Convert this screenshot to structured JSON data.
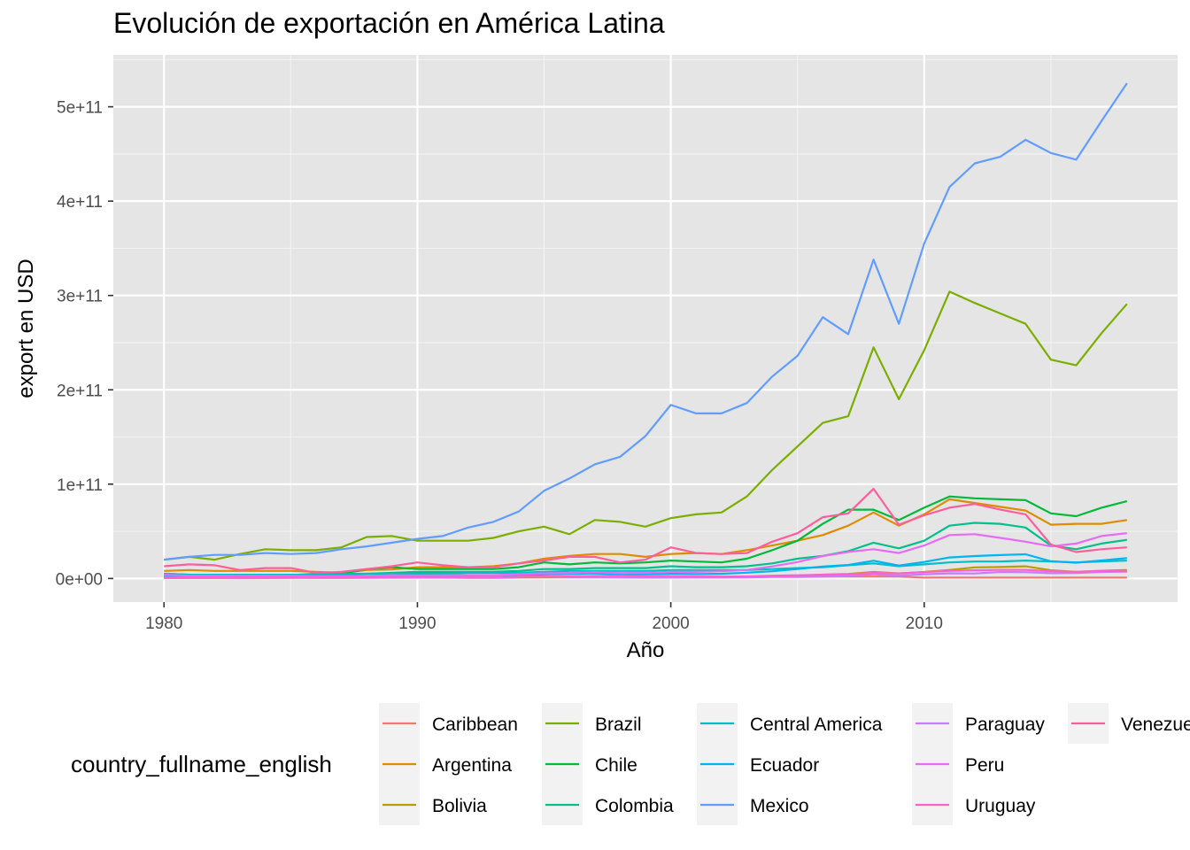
{
  "chart_data": {
    "type": "line",
    "title": "Evolución de exportación en América Latina",
    "xlabel": "Año",
    "ylabel": "export en USD",
    "xlim": [
      1978,
      2020
    ],
    "ylim": [
      -25000000000.0,
      555000000000.0
    ],
    "xticks": [
      1980,
      1990,
      2000,
      2010
    ],
    "yticks": [
      0,
      100000000000.0,
      200000000000.0,
      300000000000.0,
      400000000000.0,
      500000000000.0
    ],
    "ytick_labels": [
      "0e+00",
      "1e+11",
      "2e+11",
      "3e+11",
      "4e+11",
      "5e+11"
    ],
    "grid": true,
    "legend_title": "country_fullname_english",
    "legend_position": "bottom",
    "x": [
      1980,
      1981,
      1982,
      1983,
      1984,
      1985,
      1986,
      1987,
      1988,
      1989,
      1990,
      1991,
      1992,
      1993,
      1994,
      1995,
      1996,
      1997,
      1998,
      1999,
      2000,
      2001,
      2002,
      2003,
      2004,
      2005,
      2006,
      2007,
      2008,
      2009,
      2010,
      2011,
      2012,
      2013,
      2014,
      2015,
      2016,
      2017,
      2018
    ],
    "series": [
      {
        "name": "Caribbean",
        "color": "#F8766D",
        "values": [
          2000000000.0,
          2000000000.0,
          2000000000.0,
          2000000000.0,
          2000000000.0,
          2000000000.0,
          2000000000.0,
          2000000000.0,
          2000000000.0,
          2000000000.0,
          2000000000.0,
          2000000000.0,
          2000000000.0,
          2000000000.0,
          2000000000.0,
          2000000000.0,
          2000000000.0,
          2000000000.0,
          2000000000.0,
          2000000000.0,
          2000000000.0,
          2000000000.0,
          2000000000.0,
          2000000000.0,
          2000000000.0,
          2000000000.0,
          2000000000.0,
          2000000000.0,
          2000000000.0,
          2000000000.0,
          1000000000.0,
          1000000000.0,
          1000000000.0,
          1000000000.0,
          1000000000.0,
          1000000000.0,
          1000000000.0,
          1000000000.0,
          1000000000.0
        ]
      },
      {
        "name": "Argentina",
        "color": "#DE8C00",
        "values": [
          8000000000.0,
          9000000000.0,
          8000000000.0,
          8000000000.0,
          8000000000.0,
          8000000000.0,
          7000000000.0,
          6000000000.0,
          9000000000.0,
          9500000000.0,
          12000000000.0,
          12000000000.0,
          12000000000.0,
          13000000000.0,
          16000000000.0,
          21000000000.0,
          24000000000.0,
          26000000000.0,
          26000000000.0,
          23000000000.0,
          26000000000.0,
          27000000000.0,
          26000000000.0,
          30000000000.0,
          35000000000.0,
          40000000000.0,
          46000000000.0,
          56000000000.0,
          70000000000.0,
          56000000000.0,
          68000000000.0,
          84000000000.0,
          80000000000.0,
          76000000000.0,
          72000000000.0,
          57000000000.0,
          58000000000.0,
          58000000000.0,
          62000000000.0
        ]
      },
      {
        "name": "Bolivia",
        "color": "#B79F00",
        "values": [
          1000000000.0,
          1000000000.0,
          1000000000.0,
          1000000000.0,
          1000000000.0,
          1000000000.0,
          600000000.0,
          600000000.0,
          600000000.0,
          800000000.0,
          900000000.0,
          900000000.0,
          700000000.0,
          700000000.0,
          1000000000.0,
          1100000000.0,
          1100000000.0,
          1200000000.0,
          1100000000.0,
          1100000000.0,
          1200000000.0,
          1300000000.0,
          1300000000.0,
          1600000000.0,
          2200000000.0,
          2800000000.0,
          4100000000.0,
          4800000000.0,
          6900000000.0,
          5400000000.0,
          6900000000.0,
          9100000000.0,
          11800000000.0,
          12200000000.0,
          12900000000.0,
          8700000000.0,
          7100000000.0,
          8200000000.0,
          9000000000.0
        ]
      },
      {
        "name": "Brazil",
        "color": "#7CAE00",
        "values": [
          20000000000.0,
          23000000000.0,
          20000000000.0,
          26000000000.0,
          31000000000.0,
          30000000000.0,
          30000000000.0,
          33000000000.0,
          44000000000.0,
          45000000000.0,
          40000000000.0,
          40000000000.0,
          40000000000.0,
          43000000000.0,
          50000000000.0,
          55000000000.0,
          47000000000.0,
          62000000000.0,
          60000000000.0,
          55000000000.0,
          64000000000.0,
          68000000000.0,
          70000000000.0,
          87000000000.0,
          115000000000.0,
          140000000000.0,
          165000000000.0,
          172000000000.0,
          245000000000.0,
          190000000000.0,
          242000000000.0,
          304000000000.0,
          292000000000.0,
          281000000000.0,
          270000000000.0,
          232000000000.0,
          226000000000.0,
          260000000000.0,
          291000000000.0
        ]
      },
      {
        "name": "Chile",
        "color": "#00BA38",
        "values": [
          5000000000.0,
          4000000000.0,
          4000000000.0,
          4000000000.0,
          4000000000.0,
          4000000000.0,
          4000000000.0,
          5000000000.0,
          10000000000.0,
          12000000000.0,
          10000000000.0,
          10000000000.0,
          10000000000.0,
          10000000000.0,
          12000000000.0,
          17000000000.0,
          15000000000.0,
          17000000000.0,
          16000000000.0,
          17000000000.0,
          19000000000.0,
          18000000000.0,
          17000000000.0,
          21000000000.0,
          30000000000.0,
          40000000000.0,
          58000000000.0,
          73000000000.0,
          73000000000.0,
          62000000000.0,
          75000000000.0,
          87000000000.0,
          85000000000.0,
          84000000000.0,
          83000000000.0,
          69000000000.0,
          66000000000.0,
          75000000000.0,
          82000000000.0
        ]
      },
      {
        "name": "Colombia",
        "color": "#00C08B",
        "values": [
          4000000000.0,
          3000000000.0,
          3000000000.0,
          3000000000.0,
          4000000000.0,
          3500000000.0,
          5000000000.0,
          5000000000.0,
          5000000000.0,
          6000000000.0,
          7000000000.0,
          7000000000.0,
          7000000000.0,
          7000000000.0,
          8000000000.0,
          10000000000.0,
          10000000000.0,
          11000000000.0,
          11000000000.0,
          11000000000.0,
          13000000000.0,
          12000000000.0,
          12000000000.0,
          13000000000.0,
          16000000000.0,
          21000000000.0,
          24000000000.0,
          29000000000.0,
          38000000000.0,
          32000000000.0,
          40000000000.0,
          56000000000.0,
          59000000000.0,
          58000000000.0,
          54000000000.0,
          35000000000.0,
          31000000000.0,
          37000000000.0,
          41000000000.0
        ]
      },
      {
        "name": "Central America",
        "color": "#00BFC4",
        "values": [
          5000000000.0,
          4000000000.0,
          4000000000.0,
          4000000000.0,
          4000000000.0,
          4000000000.0,
          4000000000.0,
          4000000000.0,
          5000000000.0,
          5000000000.0,
          5000000000.0,
          5000000000.0,
          6000000000.0,
          6000000000.0,
          6000000000.0,
          7000000000.0,
          8000000000.0,
          8000000000.0,
          8000000000.0,
          8000000000.0,
          9000000000.0,
          9000000000.0,
          9000000000.0,
          9000000000.0,
          10000000000.0,
          11000000000.0,
          12000000000.0,
          14000000000.0,
          16000000000.0,
          13000000000.0,
          15000000000.0,
          17000000000.0,
          18000000000.0,
          18000000000.0,
          19000000000.0,
          18000000000.0,
          17000000000.0,
          18000000000.0,
          19000000000.0
        ]
      },
      {
        "name": "Ecuador",
        "color": "#00B4F0",
        "values": [
          2500000000.0,
          2500000000.0,
          2300000000.0,
          2200000000.0,
          2600000000.0,
          2900000000.0,
          2200000000.0,
          2000000000.0,
          2200000000.0,
          2400000000.0,
          2700000000.0,
          2900000000.0,
          3000000000.0,
          3000000000.0,
          3800000000.0,
          4300000000.0,
          4900000000.0,
          5300000000.0,
          4200000000.0,
          4500000000.0,
          4900000000.0,
          4700000000.0,
          5000000000.0,
          6200000000.0,
          7700000000.0,
          10100000000.0,
          12700000000.0,
          14300000000.0,
          18800000000.0,
          13800000000.0,
          17500000000.0,
          22300000000.0,
          23800000000.0,
          24800000000.0,
          25700000000.0,
          18300000000.0,
          16800000000.0,
          19100000000.0,
          21600000000.0
        ]
      },
      {
        "name": "Mexico",
        "color": "#619CFF",
        "values": [
          20000000000.0,
          23000000000.0,
          25000000000.0,
          25000000000.0,
          27000000000.0,
          26000000000.0,
          27000000000.0,
          31000000000.0,
          34000000000.0,
          38000000000.0,
          42000000000.0,
          45000000000.0,
          54000000000.0,
          60000000000.0,
          71000000000.0,
          93000000000.0,
          106000000000.0,
          121000000000.0,
          129000000000.0,
          151000000000.0,
          184000000000.0,
          175000000000.0,
          175000000000.0,
          186000000000.0,
          214000000000.0,
          236000000000.0,
          277000000000.0,
          259000000000.0,
          338000000000.0,
          270000000000.0,
          355000000000.0,
          415000000000.0,
          440000000000.0,
          447000000000.0,
          465000000000.0,
          451000000000.0,
          444000000000.0,
          485000000000.0,
          525000000000.0
        ]
      },
      {
        "name": "Paraguay",
        "color": "#C77CFF",
        "values": [
          400000000.0,
          400000000.0,
          400000000.0,
          300000000.0,
          400000000.0,
          500000000.0,
          600000000.0,
          600000000.0,
          900000000.0,
          1200000000.0,
          1400000000.0,
          1100000000.0,
          1000000000.0,
          1200000000.0,
          1600000000.0,
          1900000000.0,
          1600000000.0,
          1500000000.0,
          1200000000.0,
          900000000.0,
          900000000.0,
          1000000000.0,
          1000000000.0,
          1200000000.0,
          1600000000.0,
          1700000000.0,
          1900000000.0,
          2800000000.0,
          4400000000.0,
          3200000000.0,
          4500000000.0,
          5500000000.0,
          5300000000.0,
          6900000000.0,
          6700000000.0,
          5600000000.0,
          5900000000.0,
          6900000000.0,
          7300000000.0
        ]
      },
      {
        "name": "Peru",
        "color": "#E76BF3",
        "values": [
          4000000000.0,
          3000000000.0,
          3000000000.0,
          3000000000.0,
          3000000000.0,
          3000000000.0,
          2500000000.0,
          2500000000.0,
          2700000000.0,
          3500000000.0,
          3300000000.0,
          3400000000.0,
          3500000000.0,
          3500000000.0,
          4600000000.0,
          5500000000.0,
          5900000000.0,
          6800000000.0,
          5800000000.0,
          6100000000.0,
          7000000000.0,
          7000000000.0,
          7700000000.0,
          9100000000.0,
          12800000000.0,
          17400000000.0,
          23800000000.0,
          28100000000.0,
          31000000000.0,
          27000000000.0,
          35000000000.0,
          46000000000.0,
          47000000000.0,
          43000000000.0,
          39000000000.0,
          34000000000.0,
          37000000000.0,
          45000000000.0,
          48000000000.0
        ]
      },
      {
        "name": "Uruguay",
        "color": "#FF61CC",
        "values": [
          1000000000.0,
          1200000000.0,
          1000000000.0,
          1000000000.0,
          1000000000.0,
          1000000000.0,
          1100000000.0,
          1200000000.0,
          1400000000.0,
          1600000000.0,
          1700000000.0,
          1600000000.0,
          1700000000.0,
          1600000000.0,
          1900000000.0,
          2100000000.0,
          2400000000.0,
          2700000000.0,
          2800000000.0,
          2200000000.0,
          2300000000.0,
          2100000000.0,
          1900000000.0,
          2200000000.0,
          3000000000.0,
          3400000000.0,
          4000000000.0,
          4500000000.0,
          6000000000.0,
          5400000000.0,
          6700000000.0,
          8000000000.0,
          8700000000.0,
          9100000000.0,
          9200000000.0,
          7700000000.0,
          7000000000.0,
          7900000000.0,
          7500000000.0
        ]
      },
      {
        "name": "Venezuela",
        "color": "#FF5E9C",
        "values": [
          13000000000.0,
          15000000000.0,
          14000000000.0,
          9000000000.0,
          11000000000.0,
          11000000000.0,
          6000000000.0,
          7000000000.0,
          10000000000.0,
          13000000000.0,
          17000000000.0,
          14000000000.0,
          12000000000.0,
          12000000000.0,
          16000000000.0,
          19000000000.0,
          23000000000.0,
          23000000000.0,
          17000000000.0,
          20000000000.0,
          33000000000.0,
          27000000000.0,
          26000000000.0,
          27000000000.0,
          39000000000.0,
          48000000000.0,
          65000000000.0,
          69000000000.0,
          95000000000.0,
          57000000000.0,
          67000000000.0,
          75000000000.0,
          79000000000.0,
          73000000000.0,
          68000000000.0,
          36000000000.0,
          28000000000.0,
          31000000000.0,
          33000000000.0
        ]
      }
    ]
  }
}
